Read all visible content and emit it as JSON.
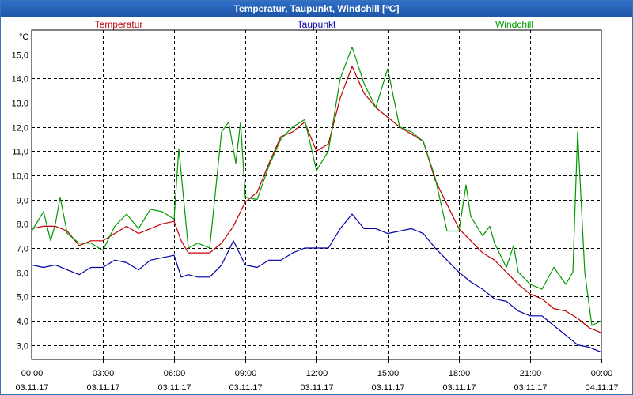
{
  "colors": {
    "temperature": "#c00000",
    "dewpoint": "#0000a8",
    "windchill": "#009a00",
    "grid": "#000000",
    "title_bg": "#2f6fc7"
  },
  "chart_data": {
    "type": "line",
    "title": "Temperatur, Taupunkt, Windchill [°C]",
    "ylabel": "°C",
    "ylim": [
      2.4,
      16.0
    ],
    "yticks": [
      3.0,
      4.0,
      5.0,
      6.0,
      7.0,
      8.0,
      9.0,
      10.0,
      11.0,
      12.0,
      13.0,
      14.0,
      15.0
    ],
    "ytick_labels": [
      "3,0",
      "4,0",
      "5,0",
      "6,0",
      "7,0",
      "8,0",
      "9,0",
      "10,0",
      "11,0",
      "12,0",
      "13,0",
      "14,0",
      "15,0"
    ],
    "xlim_hours": [
      0,
      24
    ],
    "xticks": [
      {
        "hour": 0,
        "time": "00:00",
        "date": "03.11.17"
      },
      {
        "hour": 3,
        "time": "03:00",
        "date": "03.11.17"
      },
      {
        "hour": 6,
        "time": "06:00",
        "date": "03.11.17"
      },
      {
        "hour": 9,
        "time": "09:00",
        "date": "03.11.17"
      },
      {
        "hour": 12,
        "time": "12:00",
        "date": "03.11.17"
      },
      {
        "hour": 15,
        "time": "15:00",
        "date": "03.11.17"
      },
      {
        "hour": 18,
        "time": "18:00",
        "date": "03.11.17"
      },
      {
        "hour": 21,
        "time": "21:00",
        "date": "03.11.17"
      },
      {
        "hour": 24,
        "time": "00:00",
        "date": "04.11.17"
      }
    ],
    "grid": true,
    "legend": {
      "placement": "top",
      "labels": [
        "Temperatur",
        "Taupunkt",
        "Windchill"
      ]
    },
    "series": [
      {
        "name": "Temperatur",
        "color": "#c00000",
        "points": [
          [
            0,
            7.8
          ],
          [
            0.5,
            7.9
          ],
          [
            1,
            7.9
          ],
          [
            1.5,
            7.7
          ],
          [
            2,
            7.1
          ],
          [
            2.5,
            7.3
          ],
          [
            3,
            7.3
          ],
          [
            3.5,
            7.6
          ],
          [
            4,
            7.9
          ],
          [
            4.5,
            7.6
          ],
          [
            5,
            7.8
          ],
          [
            5.5,
            8.0
          ],
          [
            6,
            8.1
          ],
          [
            6.3,
            7.3
          ],
          [
            6.6,
            6.8
          ],
          [
            7,
            6.8
          ],
          [
            7.5,
            6.8
          ],
          [
            8,
            7.2
          ],
          [
            8.5,
            7.9
          ],
          [
            9,
            8.9
          ],
          [
            9.5,
            9.3
          ],
          [
            10,
            10.5
          ],
          [
            10.5,
            11.6
          ],
          [
            11,
            11.8
          ],
          [
            11.5,
            12.2
          ],
          [
            12,
            11.0
          ],
          [
            12.5,
            11.3
          ],
          [
            13,
            13.2
          ],
          [
            13.5,
            14.5
          ],
          [
            14,
            13.4
          ],
          [
            14.5,
            12.8
          ],
          [
            15,
            12.4
          ],
          [
            15.5,
            12.0
          ],
          [
            16,
            11.7
          ],
          [
            16.5,
            11.4
          ],
          [
            17,
            9.8
          ],
          [
            17.5,
            8.8
          ],
          [
            18,
            7.8
          ],
          [
            18.5,
            7.3
          ],
          [
            19,
            6.8
          ],
          [
            19.5,
            6.5
          ],
          [
            20,
            6.0
          ],
          [
            20.5,
            5.5
          ],
          [
            21,
            5.1
          ],
          [
            21.5,
            4.9
          ],
          [
            22,
            4.5
          ],
          [
            22.5,
            4.4
          ],
          [
            23,
            4.1
          ],
          [
            23.5,
            3.7
          ],
          [
            24,
            3.5
          ]
        ]
      },
      {
        "name": "Taupunkt",
        "color": "#0000a8",
        "points": [
          [
            0,
            6.3
          ],
          [
            0.5,
            6.2
          ],
          [
            1,
            6.3
          ],
          [
            1.5,
            6.1
          ],
          [
            2,
            5.9
          ],
          [
            2.5,
            6.2
          ],
          [
            3,
            6.2
          ],
          [
            3.5,
            6.5
          ],
          [
            4,
            6.4
          ],
          [
            4.5,
            6.1
          ],
          [
            5,
            6.5
          ],
          [
            5.5,
            6.6
          ],
          [
            6,
            6.7
          ],
          [
            6.3,
            5.8
          ],
          [
            6.6,
            5.9
          ],
          [
            7,
            5.8
          ],
          [
            7.5,
            5.8
          ],
          [
            8,
            6.3
          ],
          [
            8.5,
            7.3
          ],
          [
            9,
            6.3
          ],
          [
            9.5,
            6.2
          ],
          [
            10,
            6.5
          ],
          [
            10.5,
            6.5
          ],
          [
            11,
            6.8
          ],
          [
            11.5,
            7.0
          ],
          [
            12,
            7.0
          ],
          [
            12.5,
            7.0
          ],
          [
            13,
            7.8
          ],
          [
            13.5,
            8.4
          ],
          [
            14,
            7.8
          ],
          [
            14.5,
            7.8
          ],
          [
            15,
            7.6
          ],
          [
            15.5,
            7.7
          ],
          [
            16,
            7.8
          ],
          [
            16.5,
            7.6
          ],
          [
            17,
            7.0
          ],
          [
            17.5,
            6.5
          ],
          [
            18,
            6.0
          ],
          [
            18.5,
            5.6
          ],
          [
            19,
            5.3
          ],
          [
            19.5,
            4.9
          ],
          [
            20,
            4.8
          ],
          [
            20.5,
            4.4
          ],
          [
            21,
            4.2
          ],
          [
            21.5,
            4.2
          ],
          [
            22,
            3.8
          ],
          [
            22.5,
            3.4
          ],
          [
            23,
            3.0
          ],
          [
            23.5,
            2.9
          ],
          [
            24,
            2.7
          ]
        ]
      },
      {
        "name": "Windchill",
        "color": "#009a00",
        "points": [
          [
            0,
            7.7
          ],
          [
            0.5,
            8.5
          ],
          [
            0.8,
            7.3
          ],
          [
            1,
            8.0
          ],
          [
            1.2,
            9.1
          ],
          [
            1.5,
            7.6
          ],
          [
            2,
            7.2
          ],
          [
            2.5,
            7.2
          ],
          [
            3,
            6.9
          ],
          [
            3.5,
            7.9
          ],
          [
            4,
            8.4
          ],
          [
            4.5,
            7.8
          ],
          [
            5,
            8.6
          ],
          [
            5.5,
            8.5
          ],
          [
            6,
            8.2
          ],
          [
            6.2,
            11.1
          ],
          [
            6.6,
            7.0
          ],
          [
            7,
            7.2
          ],
          [
            7.5,
            7.0
          ],
          [
            8,
            11.8
          ],
          [
            8.3,
            12.2
          ],
          [
            8.6,
            10.5
          ],
          [
            8.8,
            12.2
          ],
          [
            9,
            9.1
          ],
          [
            9.5,
            9.0
          ],
          [
            10,
            10.4
          ],
          [
            10.5,
            11.5
          ],
          [
            11,
            12.0
          ],
          [
            11.5,
            12.3
          ],
          [
            12,
            10.2
          ],
          [
            12.5,
            11.0
          ],
          [
            13,
            14.0
          ],
          [
            13.5,
            15.3
          ],
          [
            14,
            13.8
          ],
          [
            14.5,
            12.8
          ],
          [
            15,
            14.4
          ],
          [
            15.5,
            12.0
          ],
          [
            16,
            11.8
          ],
          [
            16.5,
            11.4
          ],
          [
            17,
            9.9
          ],
          [
            17.5,
            7.7
          ],
          [
            18,
            7.7
          ],
          [
            18.3,
            9.6
          ],
          [
            18.5,
            8.3
          ],
          [
            19,
            7.5
          ],
          [
            19.3,
            7.9
          ],
          [
            19.5,
            7.2
          ],
          [
            20,
            6.2
          ],
          [
            20.3,
            7.1
          ],
          [
            20.5,
            6.0
          ],
          [
            21,
            5.5
          ],
          [
            21.5,
            5.3
          ],
          [
            22,
            6.2
          ],
          [
            22.5,
            5.5
          ],
          [
            22.8,
            6.0
          ],
          [
            23,
            11.8
          ],
          [
            23.3,
            6.0
          ],
          [
            23.6,
            3.8
          ],
          [
            24,
            4.0
          ]
        ]
      }
    ]
  }
}
